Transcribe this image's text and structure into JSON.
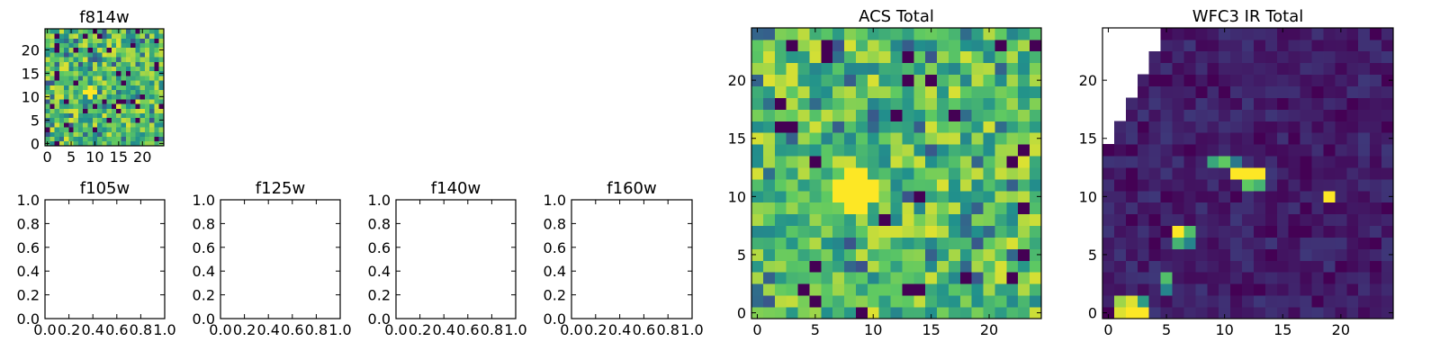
{
  "figure": {
    "background": "#ffffff",
    "colormap": [
      "#440154",
      "#3b528b",
      "#21918c",
      "#5ec962",
      "#fde725"
    ]
  },
  "chart_data": [
    {
      "id": "f814w",
      "type": "heatmap",
      "title": "f814w",
      "grid": false,
      "xlim": [
        -0.5,
        24.5
      ],
      "ylim": [
        -0.5,
        24.5
      ],
      "xticks": [
        0,
        5,
        10,
        15,
        20
      ],
      "yticks": [
        0,
        5,
        10,
        15,
        20
      ],
      "xticklabels": [
        "0",
        "5",
        "10",
        "15",
        "20"
      ],
      "yticklabels": [
        "0",
        "5",
        "10",
        "15",
        "20"
      ],
      "rows": 25,
      "cols": 25,
      "value_range": [
        0,
        1
      ],
      "seed": 814,
      "noise": "uniform-noise-biased-high",
      "hotspots": [
        {
          "x": 9,
          "y": 11,
          "r": 1.4,
          "value": 1.0
        }
      ]
    },
    {
      "id": "f105w",
      "type": "empty",
      "title": "f105w",
      "xlim": [
        0,
        1
      ],
      "ylim": [
        0,
        1
      ],
      "xticks": [
        0,
        0.2,
        0.4,
        0.6,
        0.8,
        1.0
      ],
      "yticks": [
        0,
        0.2,
        0.4,
        0.6,
        0.8,
        1.0
      ],
      "xticklabels": [
        "0.0",
        "0.2",
        "0.4",
        "0.6",
        "0.8",
        "1.0"
      ],
      "yticklabels": [
        "0.0",
        "0.2",
        "0.4",
        "0.6",
        "0.8",
        "1.0"
      ]
    },
    {
      "id": "f125w",
      "type": "empty",
      "title": "f125w",
      "xlim": [
        0,
        1
      ],
      "ylim": [
        0,
        1
      ],
      "xticks": [
        0,
        0.2,
        0.4,
        0.6,
        0.8,
        1.0
      ],
      "yticks": [
        0,
        0.2,
        0.4,
        0.6,
        0.8,
        1.0
      ],
      "xticklabels": [
        "0.0",
        "0.2",
        "0.4",
        "0.6",
        "0.8",
        "1.0"
      ],
      "yticklabels": [
        "0.0",
        "0.2",
        "0.4",
        "0.6",
        "0.8",
        "1.0"
      ]
    },
    {
      "id": "f140w",
      "type": "empty",
      "title": "f140w",
      "xlim": [
        0,
        1
      ],
      "ylim": [
        0,
        1
      ],
      "xticks": [
        0,
        0.2,
        0.4,
        0.6,
        0.8,
        1.0
      ],
      "yticks": [
        0,
        0.2,
        0.4,
        0.6,
        0.8,
        1.0
      ],
      "xticklabels": [
        "0.0",
        "0.2",
        "0.4",
        "0.6",
        "0.8",
        "1.0"
      ],
      "yticklabels": [
        "0.0",
        "0.2",
        "0.4",
        "0.6",
        "0.8",
        "1.0"
      ]
    },
    {
      "id": "f160w",
      "type": "empty",
      "title": "f160w",
      "xlim": [
        0,
        1
      ],
      "ylim": [
        0,
        1
      ],
      "xticks": [
        0,
        0.2,
        0.4,
        0.6,
        0.8,
        1.0
      ],
      "yticks": [
        0,
        0.2,
        0.4,
        0.6,
        0.8,
        1.0
      ],
      "xticklabels": [
        "0.0",
        "0.2",
        "0.4",
        "0.6",
        "0.8",
        "1.0"
      ],
      "yticklabels": [
        "0.0",
        "0.2",
        "0.4",
        "0.6",
        "0.8",
        "1.0"
      ]
    },
    {
      "id": "acs-total",
      "type": "heatmap",
      "title": "ACS Total",
      "grid": false,
      "xlim": [
        -0.5,
        24.5
      ],
      "ylim": [
        -0.5,
        24.5
      ],
      "xticks": [
        0,
        5,
        10,
        15,
        20
      ],
      "yticks": [
        0,
        5,
        10,
        15,
        20
      ],
      "xticklabels": [
        "0",
        "5",
        "10",
        "15",
        "20"
      ],
      "yticklabels": [
        "0",
        "5",
        "10",
        "15",
        "20"
      ],
      "rows": 25,
      "cols": 25,
      "value_range": [
        0,
        1
      ],
      "seed": 2024,
      "noise": "uniform-noise-biased-high",
      "hotspots": [
        {
          "x": 8.5,
          "y": 10.5,
          "r": 1.6,
          "value": 1.0
        }
      ]
    },
    {
      "id": "wfc3-ir-total",
      "type": "heatmap",
      "title": "WFC3 IR Total",
      "grid": false,
      "xlim": [
        -0.5,
        24.5
      ],
      "ylim": [
        -0.5,
        24.5
      ],
      "xticks": [
        0,
        5,
        10,
        15,
        20
      ],
      "yticks": [
        0,
        5,
        10,
        15,
        20
      ],
      "xticklabels": [
        "0",
        "5",
        "10",
        "15",
        "20"
      ],
      "yticklabels": [
        "0",
        "5",
        "10",
        "15",
        "20"
      ],
      "rows": 25,
      "cols": 25,
      "value_range": [
        0,
        1
      ],
      "seed": 160,
      "noise": "low-background",
      "masked_region": "upper-left-staircase-no-data",
      "masked_top_row_start_col": 5,
      "cells": [
        {
          "x": 1,
          "y": 0,
          "v": 0.95
        },
        {
          "x": 2,
          "y": 0,
          "v": 1.0
        },
        {
          "x": 3,
          "y": 0,
          "v": 1.0
        },
        {
          "x": 1,
          "y": 1,
          "v": 0.85
        },
        {
          "x": 2,
          "y": 1,
          "v": 0.95
        },
        {
          "x": 3,
          "y": 1,
          "v": 0.55
        },
        {
          "x": 5,
          "y": 2,
          "v": 0.45
        },
        {
          "x": 5,
          "y": 3,
          "v": 0.7
        },
        {
          "x": 6,
          "y": 7,
          "v": 1.0
        },
        {
          "x": 7,
          "y": 7,
          "v": 0.7
        },
        {
          "x": 6,
          "y": 6,
          "v": 0.65
        },
        {
          "x": 7,
          "y": 6,
          "v": 0.45
        },
        {
          "x": 9,
          "y": 13,
          "v": 0.6
        },
        {
          "x": 10,
          "y": 13,
          "v": 0.75
        },
        {
          "x": 11,
          "y": 13,
          "v": 0.4
        },
        {
          "x": 11,
          "y": 12,
          "v": 1.0
        },
        {
          "x": 12,
          "y": 12,
          "v": 1.0
        },
        {
          "x": 13,
          "y": 12,
          "v": 1.0
        },
        {
          "x": 12,
          "y": 11,
          "v": 0.75
        },
        {
          "x": 13,
          "y": 11,
          "v": 0.65
        },
        {
          "x": 19,
          "y": 10,
          "v": 1.0
        }
      ]
    }
  ]
}
